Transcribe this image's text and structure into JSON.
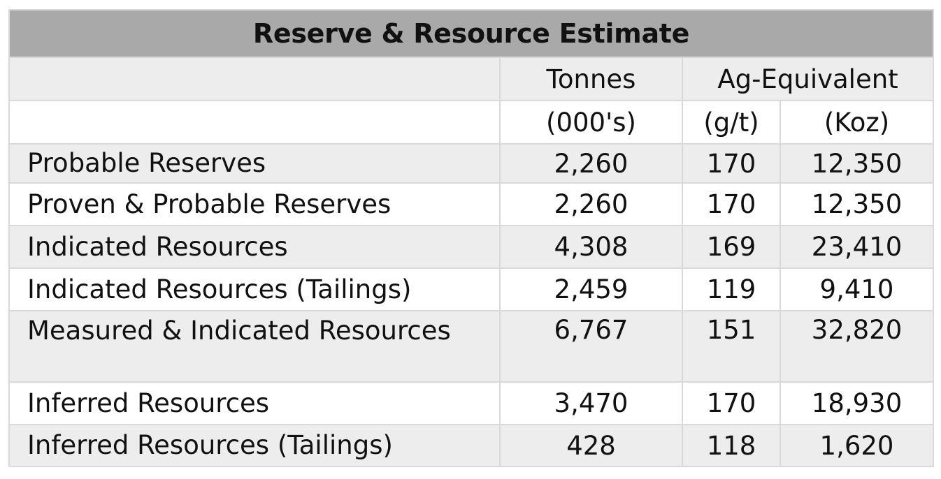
{
  "title": "Reserve & Resource Estimate",
  "header": {
    "row1": {
      "label": "",
      "tonnes": "Tonnes",
      "ag_equivalent": "Ag-Equivalent"
    },
    "row2": {
      "label": "",
      "tonnes_unit": "(000's)",
      "grade_unit": "(g/t)",
      "koz_unit": "(Koz)"
    }
  },
  "rows": [
    {
      "label": "Probable Reserves",
      "tonnes": "2,260",
      "grade": "170",
      "koz": "12,350"
    },
    {
      "label": "Proven & Probable Reserves",
      "tonnes": "2,260",
      "grade": "170",
      "koz": "12,350"
    },
    {
      "label": "Indicated Resources",
      "tonnes": "4,308",
      "grade": "169",
      "koz": "23,410"
    },
    {
      "label": "Indicated Resources (Tailings)",
      "tonnes": "2,459",
      "grade": "119",
      "koz": "9,410"
    },
    {
      "label": "Measured & Indicated Resources",
      "tonnes": "6,767",
      "grade": "151",
      "koz": "32,820"
    },
    {
      "label": "Inferred Resources",
      "tonnes": "3,470",
      "grade": "170",
      "koz": "18,930"
    },
    {
      "label": "Inferred Resources (Tailings)",
      "tonnes": "428",
      "grade": "118",
      "koz": "1,620"
    }
  ]
}
